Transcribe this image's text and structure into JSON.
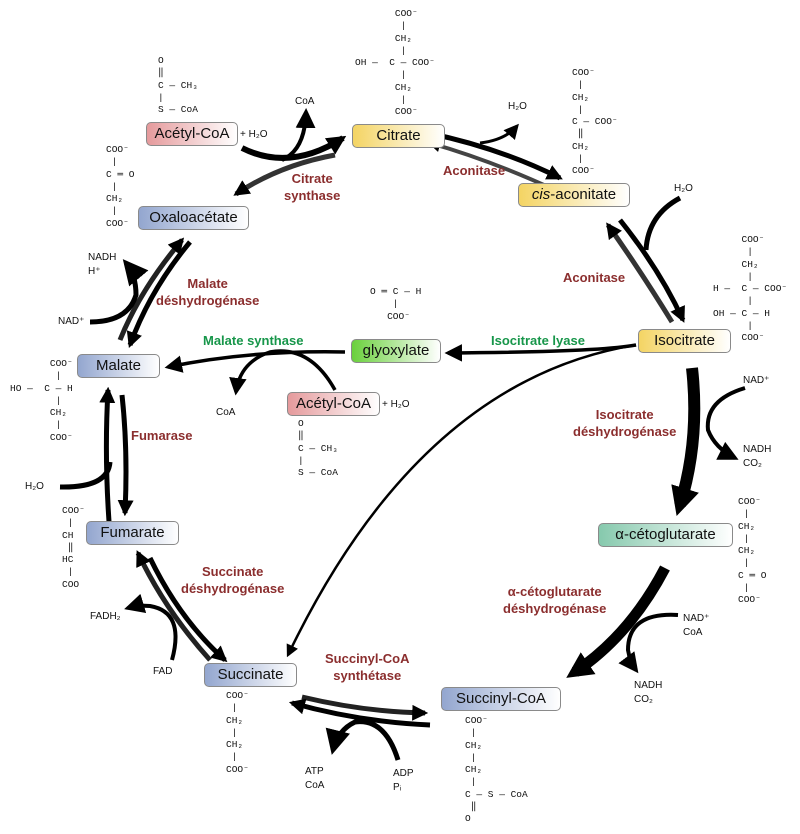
{
  "colors": {
    "enzyme": "#8b2e2e",
    "glyoxylate_enzyme": "#17964a"
  },
  "compounds": {
    "acetyl_coa_top": "Acétyl-CoA",
    "citrate": "Citrate",
    "cis_aconitate_italic": "cis",
    "cis_aconitate_rest": "-aconitate",
    "oxaloacetate": "Oxaloacétate",
    "isocitrate": "Isocitrate",
    "glyoxylate": "glyoxylate",
    "malate": "Malate",
    "acetyl_coa_mid": "Acétyl-CoA",
    "alpha_ketoglutarate": "α-cétoglutarate",
    "fumarate": "Fumarate",
    "succinate": "Succinate",
    "succinyl_coa": "Succinyl-CoA"
  },
  "enzymes": {
    "citrate_synthase": [
      "Citrate",
      "synthase"
    ],
    "aconitase_top": [
      "Aconitase"
    ],
    "aconitase_right": [
      "Aconitase"
    ],
    "malate_dh": [
      "Malate",
      "déshydrogénase"
    ],
    "malate_synthase": [
      "Malate synthase"
    ],
    "isocitrate_lyase": [
      "Isocitrate lyase"
    ],
    "fumarase": [
      "Fumarase"
    ],
    "isocitrate_dh": [
      "Isocitrate",
      "déshydrogénase"
    ],
    "succinate_dh": [
      "Succinate",
      "déshydrogénase"
    ],
    "akg_dh": [
      "α-cétoglutarate",
      "déshydrogénase"
    ],
    "succinyl_coa_synthetase": [
      "Succinyl-CoA",
      "synthétase"
    ]
  },
  "cofactors": {
    "coa_citrate": "CoA",
    "h2o_acetyl_top": "+ H₂O",
    "h2o_aconitase": "H₂O",
    "h2o_isocitrate": "H₂O",
    "nadh_h_malate": "NADH\nH⁺",
    "nad_malate": "NAD⁺",
    "coa_malate_synthase": "CoA",
    "h2o_acetyl_mid": "+ H₂O",
    "h2o_fumarase": "H₂O",
    "nad_icdh": "NAD⁺",
    "nadh_co2_icdh": "NADH\nCO₂",
    "nad_coa_akgdh": "NAD⁺\nCoA",
    "nadh_co2_akgdh": "NADH\nCO₂",
    "fadh2": "FADH₂",
    "fad": "FAD",
    "atp_coa": "ATP\nCoA",
    "adp_pi": "ADP\nPᵢ"
  },
  "structures": {
    "acetyl_coa_top": [
      "O",
      "‖",
      "C — CH₃",
      "|",
      "S — CoA"
    ],
    "citrate": [
      "       COO⁻",
      "        |",
      "       CH₂",
      "        |",
      "OH —  C — COO⁻",
      "        |",
      "       CH₂",
      "        |",
      "       COO⁻"
    ],
    "cis_aconitate": [
      "COO⁻",
      " |",
      "CH₂",
      " |",
      "C — COO⁻",
      " ‖",
      "CH₂",
      " |",
      "COO⁻"
    ],
    "oxaloacetate": [
      "COO⁻",
      " |",
      "C ═ O",
      " |",
      "CH₂",
      " |",
      "COO⁻"
    ],
    "isocitrate": [
      "     COO⁻",
      "      |",
      "     CH₂",
      "      |",
      "H —  C — COO⁻",
      "      |",
      "OH — C — H",
      "      |",
      "     COO⁻"
    ],
    "glyoxylate": [
      "O ═ C — H",
      "    |",
      "   COO⁻"
    ],
    "malate": [
      "       COO⁻",
      "        |",
      "HO —  C — H",
      "        |",
      "       CH₂",
      "        |",
      "       COO⁻"
    ],
    "acetyl_coa_mid": [
      "O",
      "‖",
      "C — CH₃",
      "|",
      "S — CoA"
    ],
    "fumarate": [
      "COO⁻",
      " |",
      "CH",
      " ‖",
      "HC",
      " |",
      "COO"
    ],
    "alpha_ketoglutarate": [
      "COO⁻",
      " |",
      "CH₂",
      " |",
      "CH₂",
      " |",
      "C ═ O",
      " |",
      "COO⁻"
    ],
    "succinate": [
      "COO⁻",
      " |",
      "CH₂",
      " |",
      "CH₂",
      " |",
      "COO⁻"
    ],
    "succinyl_coa": [
      "COO⁻",
      " |",
      "CH₂",
      " |",
      "CH₂",
      " |",
      "C — S — CoA",
      " ‖",
      "O"
    ]
  }
}
